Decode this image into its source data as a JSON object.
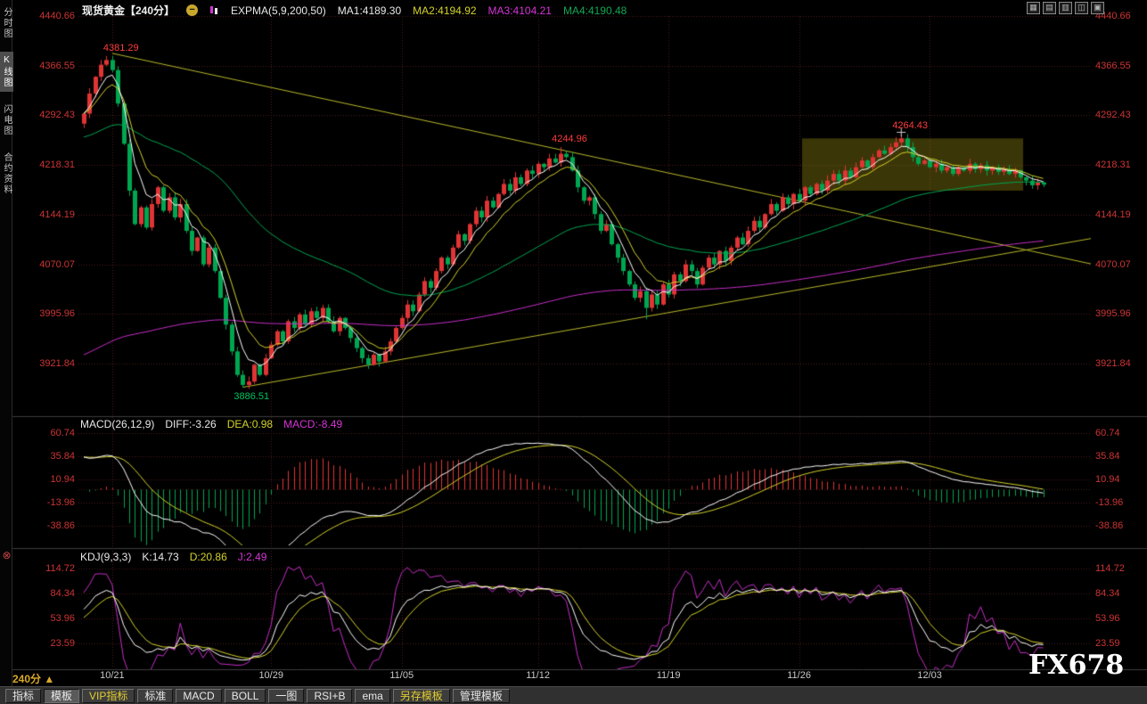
{
  "header": {
    "title": "现货黄金【240分】",
    "indicator_label": "EXPMA(5,9,200,50)",
    "ma1": "MA1:4189.30",
    "ma2": "MA2:4194.92",
    "ma3": "MA3:4104.21",
    "ma4": "MA4:4190.48"
  },
  "icons": {
    "collapse": "−",
    "panel_close": "⊗",
    "period_arrow": "▲"
  },
  "window_controls": [
    {
      "name": "multi-chart-grid-icon",
      "glyph": "▦"
    },
    {
      "name": "multi-chart-rows-icon",
      "glyph": "▤"
    },
    {
      "name": "dual-chart-icon",
      "glyph": "▥"
    },
    {
      "name": "single-chart-icon",
      "glyph": "◫"
    },
    {
      "name": "fullscreen-chart-icon",
      "glyph": "▣"
    }
  ],
  "sidebar": {
    "tabs": [
      {
        "label": "分时图",
        "active": false
      },
      {
        "label": "K线图",
        "active": true
      },
      {
        "label": "闪电图",
        "active": false
      },
      {
        "label": "合约资料",
        "active": false
      }
    ]
  },
  "footer": {
    "period_label": "240分",
    "watermark": "FX678"
  },
  "toolbar": {
    "items": [
      {
        "label": "指标"
      },
      {
        "label": "模板",
        "active": true
      },
      {
        "label": "VIP指标",
        "accent": true
      },
      {
        "label": "标准"
      },
      {
        "label": "MACD"
      },
      {
        "label": "BOLL"
      },
      {
        "label": "一图"
      },
      {
        "label": "RSI+B"
      },
      {
        "label": "ema"
      },
      {
        "label": "另存模板",
        "accent": true
      },
      {
        "label": "管理模板"
      }
    ]
  },
  "colors": {
    "up": "#e03434",
    "down": "#00a651",
    "ma1": "#ffffff",
    "ma2": "#d4d22b",
    "ma3": "#c72ec7",
    "ma4": "#00a651",
    "trendline": "#b8b82b",
    "axis_text": "#cd3434",
    "grid": "#4e1e1e",
    "highlight": "rgba(140,128,16,0.42)",
    "annotation_up": "#ff3b3b",
    "annotation_down": "#00c25e"
  },
  "chart_data": {
    "type": "candlestick",
    "symbol": "现货黄金",
    "period": "240分",
    "y_axis_labels": [
      "4440.66",
      "4366.55",
      "4292.43",
      "4218.31",
      "4144.19",
      "4070.07",
      "3995.96",
      "3921.84"
    ],
    "y_axis_values": [
      4440.66,
      4366.55,
      4292.43,
      4218.31,
      4144.19,
      4070.07,
      3995.96,
      3921.84
    ],
    "x_axis_labels": [
      "10/21",
      "10/29",
      "11/05",
      "11/12",
      "11/19",
      "11/26",
      "12/03"
    ],
    "x_tick_indices": [
      5,
      33,
      56,
      80,
      103,
      126,
      149
    ],
    "expma_periods": [
      5,
      9,
      200,
      50
    ],
    "candles": {
      "first_open": 4280,
      "closes": [
        4295,
        4325,
        4350,
        4368,
        4375,
        4360,
        4310,
        4250,
        4180,
        4130,
        4155,
        4125,
        4160,
        4185,
        4150,
        4170,
        4140,
        4160,
        4120,
        4090,
        4110,
        4070,
        4095,
        4060,
        4020,
        3980,
        3940,
        3905,
        3890,
        3895,
        3920,
        3905,
        3930,
        3950,
        3970,
        3955,
        3985,
        3975,
        3995,
        3980,
        4000,
        3990,
        4005,
        3985,
        3970,
        3990,
        3975,
        3960,
        3945,
        3930,
        3920,
        3935,
        3925,
        3940,
        3955,
        3975,
        3990,
        4010,
        4000,
        4025,
        4045,
        4035,
        4060,
        4080,
        4070,
        4095,
        4115,
        4105,
        4130,
        4150,
        4140,
        4165,
        4155,
        4175,
        4190,
        4180,
        4200,
        4190,
        4210,
        4205,
        4220,
        4215,
        4228,
        4222,
        4235,
        4230,
        4210,
        4185,
        4165,
        4170,
        4145,
        4120,
        4130,
        4100,
        4080,
        4060,
        4040,
        4020,
        4030,
        4005,
        4025,
        4010,
        4040,
        4025,
        4055,
        4045,
        4070,
        4060,
        4040,
        4065,
        4080,
        4070,
        4090,
        4075,
        4095,
        4110,
        4100,
        4120,
        4135,
        4125,
        4145,
        4160,
        4150,
        4170,
        4160,
        4175,
        4165,
        4185,
        4175,
        4190,
        4180,
        4195,
        4205,
        4195,
        4210,
        4200,
        4215,
        4225,
        4215,
        4230,
        4240,
        4235,
        4245,
        4252,
        4258,
        4245,
        4230,
        4220,
        4225,
        4215,
        4220,
        4210,
        4215,
        4205,
        4215,
        4210,
        4220,
        4212,
        4218,
        4210,
        4215,
        4208,
        4212,
        4205,
        4210,
        4200,
        4195,
        4188,
        4192,
        4189
      ],
      "overrides": {
        "5": {
          "h": 4381.29
        },
        "28": {
          "l": 3886.51
        },
        "50": {
          "l": 3914
        },
        "84": {
          "h": 4244.96
        },
        "99": {
          "l": 3988
        },
        "144": {
          "h": 4264.43
        }
      }
    },
    "annotations": [
      {
        "text": "4381.29",
        "i": 5,
        "price": 4381.29
      },
      {
        "text": "4244.96",
        "i": 84,
        "price": 4244.96
      },
      {
        "text": "4264.43",
        "i": 144,
        "price": 4264.43
      },
      {
        "text": "3886.51",
        "i": 28,
        "price": 3886.51,
        "below": true
      }
    ],
    "cross_marker": {
      "i": 144,
      "price": 4264.43
    },
    "trendlines": [
      {
        "i0": 5,
        "p0": 4385,
        "i1": 169,
        "p1": 4086
      },
      {
        "i0": 28,
        "p0": 3886.5,
        "i1": 169,
        "p1": 4096
      }
    ],
    "highlight_box": {
      "i1": 127,
      "i2": 165,
      "price_top": 4258,
      "price_bottom": 4180
    },
    "macd": {
      "label": "MACD(26,12,9)",
      "diff": "DIFF:-3.26",
      "dea": "DEA:0.98",
      "macd": "MACD:-8.49",
      "params": [
        26,
        12,
        9
      ],
      "y_labels": [
        "60.74",
        "35.84",
        "10.94",
        "-13.96",
        "-38.86"
      ],
      "y_values": [
        60.74,
        35.84,
        10.94,
        -13.96,
        -38.86
      ]
    },
    "kdj": {
      "label": "KDJ(9,3,3)",
      "k": "K:14.73",
      "d": "D:20.86",
      "j": "J:2.49",
      "params": [
        9,
        3,
        3
      ],
      "y_labels": [
        "114.72",
        "84.34",
        "53.96",
        "23.59"
      ],
      "y_values": [
        114.72,
        84.34,
        53.96,
        23.59
      ]
    }
  }
}
